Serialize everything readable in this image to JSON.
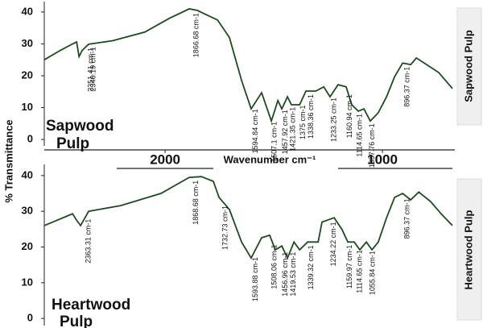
{
  "chart_data": [
    {
      "type": "line",
      "color": "#1e4a1e",
      "xlabel": "Wavenumber cm⁻¹",
      "ylabel": "% Transmittance",
      "xticks": [
        2000,
        1000
      ],
      "xlim": [
        2556,
        678
      ],
      "ylim": [
        -2,
        42
      ],
      "yticks": [
        0,
        10,
        20,
        30,
        40
      ],
      "panel_label": "Sapwood Pulp",
      "inner_label": [
        "Sapwood",
        "Pulp"
      ],
      "x": [
        2556,
        2481,
        2426,
        2407,
        2396,
        2381,
        2352,
        2241,
        2093,
        1981,
        1889,
        1852,
        1759,
        1704,
        1648,
        1604,
        1556,
        1511,
        1481,
        1463,
        1437,
        1419,
        1381,
        1352,
        1307,
        1270,
        1241,
        1204,
        1167,
        1141,
        1111,
        1085,
        1056,
        1019,
        981,
        944,
        907,
        870,
        844,
        796,
        741,
        678
      ],
      "values": [
        25,
        28,
        30,
        30.6,
        26,
        28,
        29.9,
        31,
        33.7,
        38,
        41,
        40.5,
        37.5,
        32,
        18.5,
        9.6,
        14.7,
        5.8,
        12.2,
        9.6,
        13.4,
        10.9,
        10.9,
        15.2,
        15.2,
        16.5,
        13.4,
        17.2,
        16.5,
        10.9,
        8.9,
        9.6,
        5.8,
        8.4,
        13.4,
        19.7,
        24,
        23.5,
        25.6,
        23.5,
        21,
        16
      ],
      "annotations": [
        "2351.41 cm-1",
        "2340.19 cm-1",
        "1866.68 cm-1",
        "1594.84 cm-1",
        "1507.1 cm-1",
        "1457.92 cm-1",
        "1421.35 cm-1",
        "1375 cm-1",
        "1338.36 cm-1",
        "1233.25 cm-1",
        "1160.94 cm-1",
        "1114.65 cm-1",
        "1057.76 cm-1",
        "896.37 cm-1"
      ]
    },
    {
      "type": "line",
      "color": "#1e4a1e",
      "xlim": [
        2556,
        678
      ],
      "ylim": [
        -2,
        42
      ],
      "yticks": [
        0,
        10,
        20,
        30,
        40
      ],
      "panel_label": "Heartwood Pulp",
      "inner_label": [
        "Heartwood",
        "Pulp"
      ],
      "x": [
        2556,
        2426,
        2407,
        2389,
        2352,
        2204,
        2019,
        1889,
        1833,
        1778,
        1752,
        1704,
        1648,
        1604,
        1556,
        1519,
        1493,
        1463,
        1437,
        1407,
        1381,
        1344,
        1296,
        1278,
        1222,
        1185,
        1159,
        1130,
        1104,
        1074,
        1048,
        1019,
        981,
        944,
        907,
        870,
        833,
        778,
        730,
        678
      ],
      "values": [
        26,
        29.3,
        27.5,
        26,
        30,
        31.6,
        35,
        39.5,
        39.7,
        38.4,
        33.9,
        30.5,
        21.4,
        16.9,
        22.6,
        23.3,
        19.2,
        20.3,
        16.9,
        21.4,
        19.2,
        21.4,
        21.4,
        27,
        28.2,
        24.8,
        21.4,
        21.4,
        19.2,
        21.4,
        19.2,
        21.4,
        28.2,
        33.9,
        35,
        33.2,
        35.4,
        32.7,
        29.3,
        26
      ],
      "annotations": [
        "2363.31 cm-1",
        "1868.68 cm-1",
        "1732.73 cm-1",
        "1593.88 cm-1",
        "1508.06 cm-1",
        "1456.96 cm-1",
        "1419.53 cm-1",
        "1339.32 cm-1",
        "1234.22 cm-1",
        "1159.97 cm-1",
        "1114.65 cm-1",
        "1055.84 cm-1",
        "896.37 cm-1"
      ]
    }
  ]
}
